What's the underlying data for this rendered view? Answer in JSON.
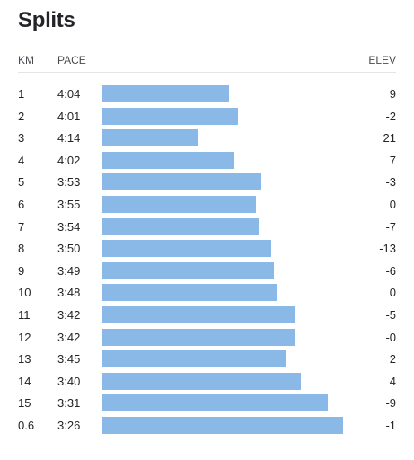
{
  "title": "Splits",
  "columns": {
    "km": "KM",
    "pace": "PACE",
    "elev": "ELEV"
  },
  "colors": {
    "bar": "#8ab9e8",
    "text": "#242428",
    "divider": "#e4e4e8"
  },
  "splits": [
    {
      "km": "1",
      "pace": "4:04",
      "pace_seconds": 244,
      "elev": "9"
    },
    {
      "km": "2",
      "pace": "4:01",
      "pace_seconds": 241,
      "elev": "-2"
    },
    {
      "km": "3",
      "pace": "4:14",
      "pace_seconds": 254,
      "elev": "21"
    },
    {
      "km": "4",
      "pace": "4:02",
      "pace_seconds": 242,
      "elev": "7"
    },
    {
      "km": "5",
      "pace": "3:53",
      "pace_seconds": 233,
      "elev": "-3"
    },
    {
      "km": "6",
      "pace": "3:55",
      "pace_seconds": 235,
      "elev": "0"
    },
    {
      "km": "7",
      "pace": "3:54",
      "pace_seconds": 234,
      "elev": "-7"
    },
    {
      "km": "8",
      "pace": "3:50",
      "pace_seconds": 230,
      "elev": "-13"
    },
    {
      "km": "9",
      "pace": "3:49",
      "pace_seconds": 229,
      "elev": "-6"
    },
    {
      "km": "10",
      "pace": "3:48",
      "pace_seconds": 228,
      "elev": "0"
    },
    {
      "km": "11",
      "pace": "3:42",
      "pace_seconds": 222,
      "elev": "-5"
    },
    {
      "km": "12",
      "pace": "3:42",
      "pace_seconds": 222,
      "elev": "-0"
    },
    {
      "km": "13",
      "pace": "3:45",
      "pace_seconds": 225,
      "elev": "2"
    },
    {
      "km": "14",
      "pace": "3:40",
      "pace_seconds": 220,
      "elev": "4"
    },
    {
      "km": "15",
      "pace": "3:31",
      "pace_seconds": 211,
      "elev": "-9"
    },
    {
      "km": "0.6",
      "pace": "3:26",
      "pace_seconds": 206,
      "elev": "-1"
    }
  ]
}
